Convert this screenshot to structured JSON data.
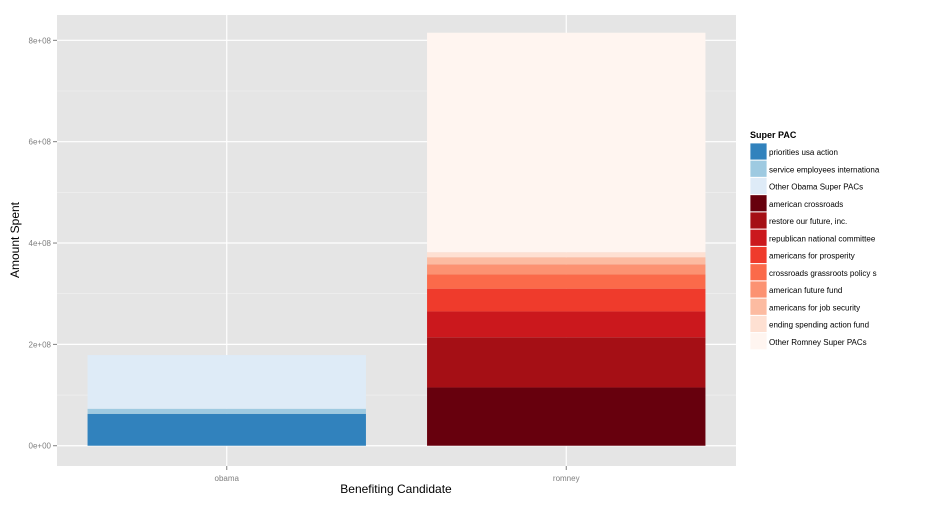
{
  "chart_data": {
    "type": "bar",
    "stacked": true,
    "xlabel": "Benefiting Candidate",
    "ylabel": "Amount Spent",
    "categories": [
      "obama",
      "romney"
    ],
    "ylim": [
      -40000000,
      850000000
    ],
    "yticks": [
      0,
      200000000,
      400000000,
      600000000,
      800000000
    ],
    "ytick_labels": [
      "0e+00",
      "2e+08",
      "4e+08",
      "6e+08",
      "8e+08"
    ],
    "grid": true,
    "legend": {
      "title": "Super PAC",
      "position": "right",
      "entries": [
        "priorities usa action",
        "service employees internationa",
        "Other Obama Super PACs",
        "american crossroads",
        "restore our future, inc.",
        "republican national committee",
        "americans for prosperity",
        "crossroads grassroots policy s",
        "american future fund",
        "americans for job security",
        "ending spending action fund",
        "Other Romney Super PACs"
      ]
    },
    "series": [
      {
        "name": "priorities usa action",
        "color": "#3182bd",
        "values": [
          63000000,
          0
        ]
      },
      {
        "name": "service employees internationa",
        "color": "#9ecae1",
        "values": [
          10000000,
          0
        ]
      },
      {
        "name": "Other Obama Super PACs",
        "color": "#deebf7",
        "values": [
          106000000,
          0
        ]
      },
      {
        "name": "american crossroads",
        "color": "#67000d",
        "values": [
          0,
          115000000
        ]
      },
      {
        "name": "restore our future, inc.",
        "color": "#a50f15",
        "values": [
          0,
          99000000
        ]
      },
      {
        "name": "republican national committee",
        "color": "#cb181d",
        "values": [
          0,
          51000000
        ]
      },
      {
        "name": "americans for prosperity",
        "color": "#ef3b2c",
        "values": [
          0,
          45000000
        ]
      },
      {
        "name": "crossroads grassroots policy s",
        "color": "#fb6a4a",
        "values": [
          0,
          28000000
        ]
      },
      {
        "name": "american future fund",
        "color": "#fc9272",
        "values": [
          0,
          20000000
        ]
      },
      {
        "name": "americans for job security",
        "color": "#fcbba1",
        "values": [
          0,
          14000000
        ]
      },
      {
        "name": "ending spending action fund",
        "color": "#fee0d2",
        "values": [
          0,
          10000000
        ]
      },
      {
        "name": "Other Romney Super PACs",
        "color": "#fff5f0",
        "values": [
          0,
          433000000
        ]
      }
    ]
  }
}
